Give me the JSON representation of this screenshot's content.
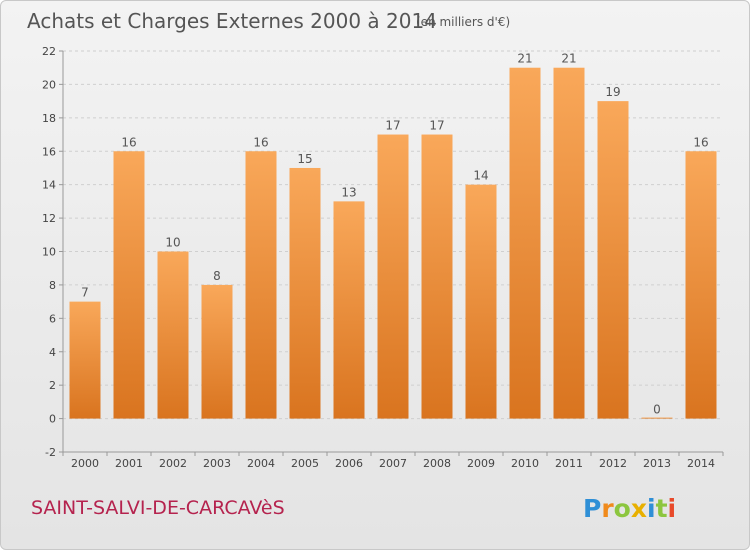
{
  "chart_data": {
    "type": "bar",
    "title": "Achats et Charges Externes 2000 à 2014",
    "subtitle": "(en milliers d'€)",
    "categories": [
      "2000",
      "2001",
      "2002",
      "2003",
      "2004",
      "2005",
      "2006",
      "2007",
      "2008",
      "2009",
      "2010",
      "2011",
      "2012",
      "2013",
      "2014"
    ],
    "values": [
      7,
      16,
      10,
      8,
      16,
      15,
      13,
      17,
      17,
      14,
      21,
      21,
      19,
      0,
      16
    ],
    "data_labels": [
      "7",
      "16",
      "10",
      "8",
      "16",
      "15",
      "13",
      "17",
      "17",
      "14",
      "21",
      "21",
      "19",
      "0",
      "16"
    ],
    "ylim": [
      -2,
      22
    ],
    "yticks": [
      -2,
      0,
      2,
      4,
      6,
      8,
      10,
      12,
      14,
      16,
      18,
      20,
      22
    ],
    "xlabel": "",
    "ylabel": "",
    "grid": "horizontal dashed",
    "bar_color_top": "#f9a85a",
    "bar_color_bottom": "#d9741f"
  },
  "footer": {
    "commune": "SAINT-SALVI-DE-CARCAVèS",
    "logo": "Proxiti",
    "logo_letters": [
      {
        "ch": "P",
        "color": "#2f8fd6"
      },
      {
        "ch": "r",
        "color": "#f08a1c"
      },
      {
        "ch": "o",
        "color": "#8cc63f"
      },
      {
        "ch": "x",
        "color": "#e8b000"
      },
      {
        "ch": "i",
        "color": "#2f8fd6"
      },
      {
        "ch": "t",
        "color": "#8cc63f"
      },
      {
        "ch": "i",
        "color": "#e84a2a"
      }
    ]
  }
}
